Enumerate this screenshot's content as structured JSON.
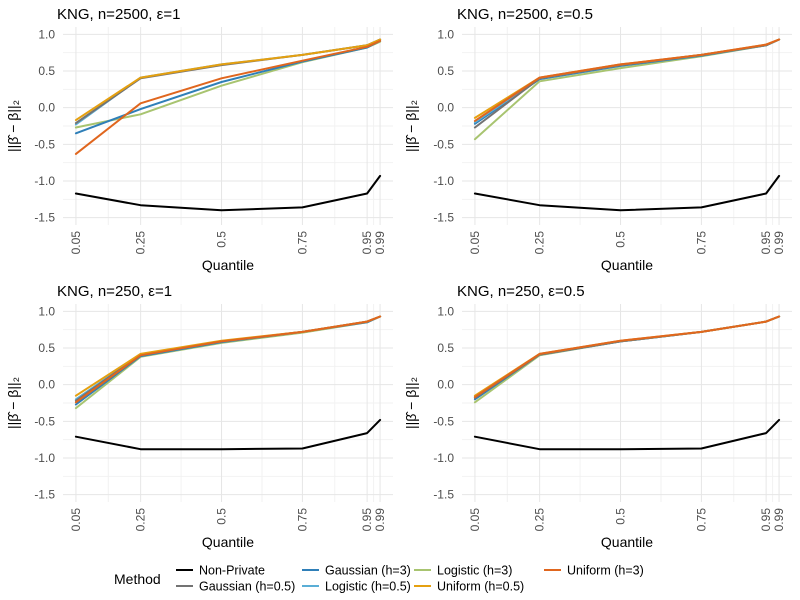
{
  "chart_data": [
    {
      "type": "line",
      "title": "KNG, n=2500, ε=1",
      "xlabel": "Quantile",
      "ylabel": "||β̂ − β||₂",
      "x": [
        0.05,
        0.25,
        0.5,
        0.75,
        0.95,
        0.99
      ],
      "x_tick_labels": [
        "0.05",
        "0.25",
        "0.5",
        "0.75",
        "0.95",
        "0.99"
      ],
      "ylim": [
        -1.6,
        1.1
      ],
      "y_ticks": [
        -1.5,
        -1.0,
        -0.5,
        0.0,
        0.5,
        1.0
      ],
      "y_tick_labels": [
        "-1.5",
        "-1.0",
        "-0.5",
        "0.0",
        "0.5",
        "1.0"
      ],
      "grid": true,
      "series": [
        {
          "name": "Non-Private",
          "values": [
            -1.17,
            -1.33,
            -1.4,
            -1.36,
            -1.17,
            -0.93
          ]
        },
        {
          "name": "Gaussian (h=0.5)",
          "values": [
            -0.21,
            0.4,
            0.58,
            0.72,
            0.85,
            0.93
          ]
        },
        {
          "name": "Gaussian (h=3)",
          "values": [
            -0.35,
            -0.02,
            0.35,
            0.63,
            0.82,
            0.91
          ]
        },
        {
          "name": "Logistic (h=0.5)",
          "values": [
            -0.23,
            0.41,
            0.59,
            0.72,
            0.85,
            0.93
          ]
        },
        {
          "name": "Logistic (h=3)",
          "values": [
            -0.27,
            -0.09,
            0.3,
            0.62,
            0.82,
            0.9
          ]
        },
        {
          "name": "Uniform (h=0.5)",
          "values": [
            -0.17,
            0.41,
            0.59,
            0.72,
            0.85,
            0.93
          ]
        },
        {
          "name": "Uniform (h=3)",
          "values": [
            -0.63,
            0.06,
            0.4,
            0.64,
            0.83,
            0.91
          ]
        }
      ]
    },
    {
      "type": "line",
      "title": "KNG, n=2500, ε=0.5",
      "xlabel": "Quantile",
      "ylabel": "||β̂ − β||₂",
      "x": [
        0.05,
        0.25,
        0.5,
        0.75,
        0.95,
        0.99
      ],
      "x_tick_labels": [
        "0.05",
        "0.25",
        "0.5",
        "0.75",
        "0.95",
        "0.99"
      ],
      "ylim": [
        -1.6,
        1.1
      ],
      "y_ticks": [
        -1.5,
        -1.0,
        -0.5,
        0.0,
        0.5,
        1.0
      ],
      "y_tick_labels": [
        "-1.5",
        "-1.0",
        "-0.5",
        "0.0",
        "0.5",
        "1.0"
      ],
      "grid": true,
      "series": [
        {
          "name": "Non-Private",
          "values": [
            -1.17,
            -1.33,
            -1.4,
            -1.36,
            -1.17,
            -0.93
          ]
        },
        {
          "name": "Gaussian (h=0.5)",
          "values": [
            -0.27,
            0.4,
            0.58,
            0.72,
            0.85,
            0.93
          ]
        },
        {
          "name": "Gaussian (h=3)",
          "values": [
            -0.22,
            0.39,
            0.57,
            0.71,
            0.85,
            0.93
          ]
        },
        {
          "name": "Logistic (h=0.5)",
          "values": [
            -0.2,
            0.4,
            0.58,
            0.72,
            0.85,
            0.93
          ]
        },
        {
          "name": "Logistic (h=3)",
          "values": [
            -0.43,
            0.36,
            0.54,
            0.7,
            0.85,
            0.93
          ]
        },
        {
          "name": "Uniform (h=0.5)",
          "values": [
            -0.14,
            0.41,
            0.59,
            0.72,
            0.86,
            0.93
          ]
        },
        {
          "name": "Uniform (h=3)",
          "values": [
            -0.18,
            0.41,
            0.59,
            0.72,
            0.86,
            0.93
          ]
        }
      ]
    },
    {
      "type": "line",
      "title": "KNG, n=250, ε=1",
      "xlabel": "Quantile",
      "ylabel": "||β̂ − β||₂",
      "x": [
        0.05,
        0.25,
        0.5,
        0.75,
        0.95,
        0.99
      ],
      "x_tick_labels": [
        "0.05",
        "0.25",
        "0.5",
        "0.75",
        "0.95",
        "0.99"
      ],
      "ylim": [
        -1.6,
        1.1
      ],
      "y_ticks": [
        -1.5,
        -1.0,
        -0.5,
        0.0,
        0.5,
        1.0
      ],
      "y_tick_labels": [
        "-1.5",
        "-1.0",
        "-0.5",
        "0.0",
        "0.5",
        "1.0"
      ],
      "grid": true,
      "series": [
        {
          "name": "Non-Private",
          "values": [
            -0.71,
            -0.88,
            -0.88,
            -0.87,
            -0.66,
            -0.48
          ]
        },
        {
          "name": "Gaussian (h=0.5)",
          "values": [
            -0.22,
            0.41,
            0.59,
            0.72,
            0.86,
            0.93
          ]
        },
        {
          "name": "Gaussian (h=3)",
          "values": [
            -0.27,
            0.39,
            0.58,
            0.72,
            0.85,
            0.93
          ]
        },
        {
          "name": "Logistic (h=0.5)",
          "values": [
            -0.2,
            0.41,
            0.59,
            0.72,
            0.86,
            0.93
          ]
        },
        {
          "name": "Logistic (h=3)",
          "values": [
            -0.32,
            0.38,
            0.57,
            0.71,
            0.85,
            0.93
          ]
        },
        {
          "name": "Uniform (h=0.5)",
          "values": [
            -0.15,
            0.42,
            0.6,
            0.72,
            0.86,
            0.93
          ]
        },
        {
          "name": "Uniform (h=3)",
          "values": [
            -0.24,
            0.4,
            0.59,
            0.72,
            0.86,
            0.93
          ]
        }
      ]
    },
    {
      "type": "line",
      "title": "KNG, n=250, ε=0.5",
      "xlabel": "Quantile",
      "ylabel": "||β̂ − β||₂",
      "x": [
        0.05,
        0.25,
        0.5,
        0.75,
        0.95,
        0.99
      ],
      "x_tick_labels": [
        "0.05",
        "0.25",
        "0.5",
        "0.75",
        "0.95",
        "0.99"
      ],
      "ylim": [
        -1.6,
        1.1
      ],
      "y_ticks": [
        -1.5,
        -1.0,
        -0.5,
        0.0,
        0.5,
        1.0
      ],
      "y_tick_labels": [
        "-1.5",
        "-1.0",
        "-0.5",
        "0.0",
        "0.5",
        "1.0"
      ],
      "grid": true,
      "series": [
        {
          "name": "Non-Private",
          "values": [
            -0.71,
            -0.88,
            -0.88,
            -0.87,
            -0.66,
            -0.48
          ]
        },
        {
          "name": "Gaussian (h=0.5)",
          "values": [
            -0.18,
            0.41,
            0.59,
            0.72,
            0.86,
            0.93
          ]
        },
        {
          "name": "Gaussian (h=3)",
          "values": [
            -0.2,
            0.41,
            0.59,
            0.72,
            0.86,
            0.93
          ]
        },
        {
          "name": "Logistic (h=0.5)",
          "values": [
            -0.17,
            0.41,
            0.59,
            0.72,
            0.86,
            0.93
          ]
        },
        {
          "name": "Logistic (h=3)",
          "values": [
            -0.24,
            0.4,
            0.59,
            0.72,
            0.86,
            0.93
          ]
        },
        {
          "name": "Uniform (h=0.5)",
          "values": [
            -0.15,
            0.42,
            0.6,
            0.72,
            0.86,
            0.93
          ]
        },
        {
          "name": "Uniform (h=3)",
          "values": [
            -0.17,
            0.42,
            0.6,
            0.72,
            0.86,
            0.93
          ]
        }
      ]
    }
  ],
  "legend": {
    "title": "Method",
    "position": "bottom",
    "items": [
      {
        "label": "Non-Private",
        "color": "#000000"
      },
      {
        "label": "Gaussian (h=0.5)",
        "color": "#737373"
      },
      {
        "label": "Gaussian (h=3)",
        "color": "#2f7fb8"
      },
      {
        "label": "Logistic (h=0.5)",
        "color": "#5aaed6"
      },
      {
        "label": "Logistic (h=3)",
        "color": "#a8c470"
      },
      {
        "label": "Uniform (h=0.5)",
        "color": "#e5a010"
      },
      {
        "label": "Uniform (h=3)",
        "color": "#e0661e"
      }
    ]
  },
  "colors": {
    "Non-Private": "#000000",
    "Gaussian (h=0.5)": "#737373",
    "Gaussian (h=3)": "#2f7fb8",
    "Logistic (h=0.5)": "#5aaed6",
    "Logistic (h=3)": "#a8c470",
    "Uniform (h=0.5)": "#e5a010",
    "Uniform (h=3)": "#e0661e"
  }
}
